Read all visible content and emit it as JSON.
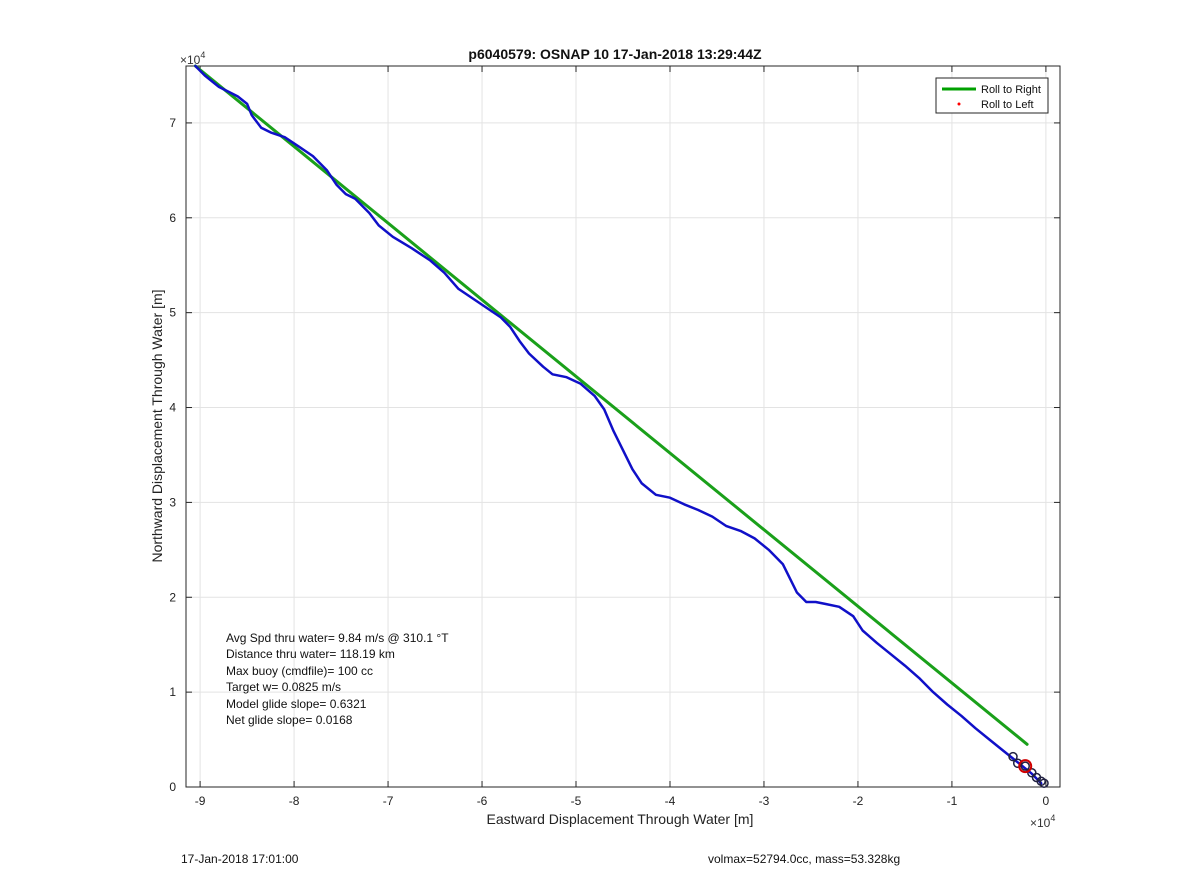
{
  "chart_data": {
    "type": "line",
    "title": "p6040579: OSNAP 10 17-Jan-2018 13:29:44Z",
    "xlabel": "Eastward Displacement Through Water [m]",
    "ylabel": "Northward Displacement Through Water [m]",
    "x_exponent_label": "×10",
    "x_exponent_power": "4",
    "y_exponent_label": "×10",
    "y_exponent_power": "4",
    "scale": 10000,
    "xlim": [
      -9.15,
      0.15
    ],
    "ylim": [
      0,
      7.6
    ],
    "xticks": [
      -9,
      -8,
      -7,
      -6,
      -5,
      -4,
      -3,
      -2,
      -1,
      0
    ],
    "yticks": [
      0,
      1,
      2,
      3,
      4,
      5,
      6,
      7
    ],
    "grid": true,
    "legend_position": "top-right",
    "legend": [
      {
        "name": "Roll to Right",
        "color": "#00a000",
        "style": "line"
      },
      {
        "name": "Roll to Left",
        "color": "#ff0000",
        "style": "dot"
      }
    ],
    "series": [
      {
        "name": "Roll to Right",
        "color": "#1aa01a",
        "x": [
          -9.05,
          -0.2
        ],
        "y": [
          7.6,
          0.45
        ]
      },
      {
        "color": "#1010c8",
        "x": [
          -9.05,
          -8.95,
          -8.8,
          -8.6,
          -8.5,
          -8.45,
          -8.35,
          -8.25,
          -8.1,
          -7.95,
          -7.8,
          -7.65,
          -7.55,
          -7.45,
          -7.35,
          -7.2,
          -7.1,
          -6.95,
          -6.75,
          -6.55,
          -6.4,
          -6.25,
          -6.1,
          -5.95,
          -5.8,
          -5.7,
          -5.6,
          -5.5,
          -5.35,
          -5.25,
          -5.1,
          -4.95,
          -4.8,
          -4.7,
          -4.6,
          -4.5,
          -4.4,
          -4.3,
          -4.15,
          -4.0,
          -3.85,
          -3.7,
          -3.55,
          -3.4,
          -3.25,
          -3.1,
          -2.95,
          -2.8,
          -2.65,
          -2.55,
          -2.45,
          -2.35,
          -2.2,
          -2.05,
          -1.95,
          -1.8,
          -1.65,
          -1.5,
          -1.35,
          -1.2,
          -1.05,
          -0.9,
          -0.75,
          -0.6,
          -0.45,
          -0.3,
          -0.15,
          -0.05
        ],
        "y": [
          7.6,
          7.5,
          7.38,
          7.28,
          7.2,
          7.08,
          6.95,
          6.9,
          6.85,
          6.75,
          6.65,
          6.5,
          6.35,
          6.25,
          6.2,
          6.05,
          5.92,
          5.8,
          5.68,
          5.55,
          5.42,
          5.25,
          5.15,
          5.05,
          4.95,
          4.85,
          4.7,
          4.57,
          4.43,
          4.35,
          4.32,
          4.25,
          4.12,
          3.98,
          3.75,
          3.55,
          3.35,
          3.2,
          3.08,
          3.05,
          2.98,
          2.92,
          2.85,
          2.75,
          2.7,
          2.62,
          2.5,
          2.35,
          2.05,
          1.95,
          1.95,
          1.93,
          1.9,
          1.8,
          1.65,
          1.52,
          1.4,
          1.28,
          1.15,
          1.0,
          0.87,
          0.75,
          0.62,
          0.5,
          0.38,
          0.26,
          0.14,
          0.04
        ]
      }
    ],
    "annotations": [
      "Avg Spd thru water=  9.84 m/s @ 310.1 °T",
      "Distance thru water= 118.19 km",
      "Max buoy (cmdfile)= 100 cc",
      "Target w= 0.0825 m/s",
      "Model glide slope= 0.6321",
      "Net glide slope= 0.0168"
    ]
  },
  "footer": {
    "date": "17-Jan-2018 17:01:00",
    "mass_info": "volmax=52794.0cc, mass=53.328kg"
  }
}
